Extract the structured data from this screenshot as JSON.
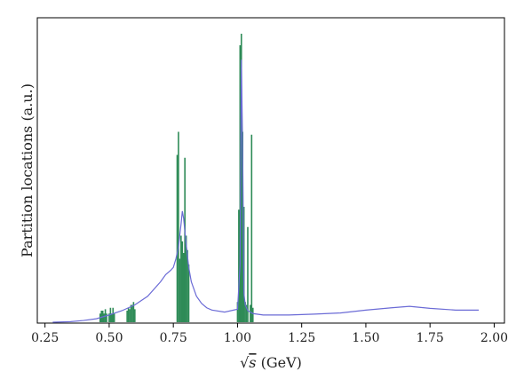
{
  "chart_data": {
    "type": "line",
    "title": "",
    "xlabel_prefix": "√",
    "xlabel_var": "s",
    "xlabel_suffix": " (GeV)",
    "ylabel": "Partition locations (a.u.)",
    "xlim": [
      0.22,
      2.04
    ],
    "ylim": [
      0,
      1.0
    ],
    "x_ticks": [
      0.25,
      0.5,
      0.75,
      1.0,
      1.25,
      1.5,
      1.75,
      2.0
    ],
    "x_tick_labels": [
      "0.25",
      "0.50",
      "0.75",
      "1.00",
      "1.25",
      "1.50",
      "1.75",
      "2.00"
    ],
    "y_tick_labels_shown": false,
    "grid": false,
    "colors": {
      "curve": "#6b6bd6",
      "partitions": "#2e8b57"
    },
    "series": [
      {
        "role": "curve",
        "x": [
          0.28,
          0.35,
          0.4,
          0.45,
          0.5,
          0.55,
          0.6,
          0.65,
          0.7,
          0.72,
          0.74,
          0.75,
          0.76,
          0.77,
          0.78,
          0.785,
          0.79,
          0.8,
          0.81,
          0.82,
          0.84,
          0.86,
          0.88,
          0.9,
          0.95,
          1.0,
          1.01,
          1.015,
          1.02,
          1.025,
          1.03,
          1.04,
          1.06,
          1.1,
          1.2,
          1.3,
          1.4,
          1.5,
          1.6,
          1.67,
          1.75,
          1.85,
          1.94
        ],
        "y": [
          0.0,
          0.002,
          0.006,
          0.012,
          0.025,
          0.04,
          0.06,
          0.09,
          0.14,
          0.165,
          0.18,
          0.19,
          0.22,
          0.26,
          0.34,
          0.385,
          0.36,
          0.27,
          0.19,
          0.14,
          0.09,
          0.065,
          0.05,
          0.042,
          0.035,
          0.045,
          0.2,
          0.91,
          0.6,
          0.1,
          0.06,
          0.04,
          0.03,
          0.025,
          0.025,
          0.028,
          0.032,
          0.042,
          0.05,
          0.055,
          0.048,
          0.042,
          0.042
        ]
      },
      {
        "role": "partitions",
        "x": [
          0.465,
          0.47,
          0.475,
          0.48,
          0.485,
          0.49,
          0.5,
          0.505,
          0.51,
          0.515,
          0.52,
          0.57,
          0.575,
          0.58,
          0.585,
          0.59,
          0.595,
          0.6,
          0.765,
          0.77,
          0.775,
          0.78,
          0.785,
          0.79,
          0.795,
          0.8,
          0.805,
          0.81,
          1.0,
          1.005,
          1.01,
          1.015,
          1.02,
          1.025,
          1.03,
          1.035,
          1.04,
          1.05,
          1.055,
          1.06
        ],
        "y": [
          0.03,
          0.04,
          0.04,
          0.03,
          0.045,
          0.03,
          0.03,
          0.05,
          0.03,
          0.05,
          0.03,
          0.04,
          0.05,
          0.045,
          0.06,
          0.06,
          0.07,
          0.045,
          0.58,
          0.66,
          0.22,
          0.3,
          0.28,
          0.24,
          0.57,
          0.3,
          0.25,
          0.2,
          0.07,
          0.39,
          0.96,
          1.0,
          0.66,
          0.4,
          0.07,
          0.06,
          0.33,
          0.06,
          0.65,
          0.05
        ]
      }
    ]
  }
}
